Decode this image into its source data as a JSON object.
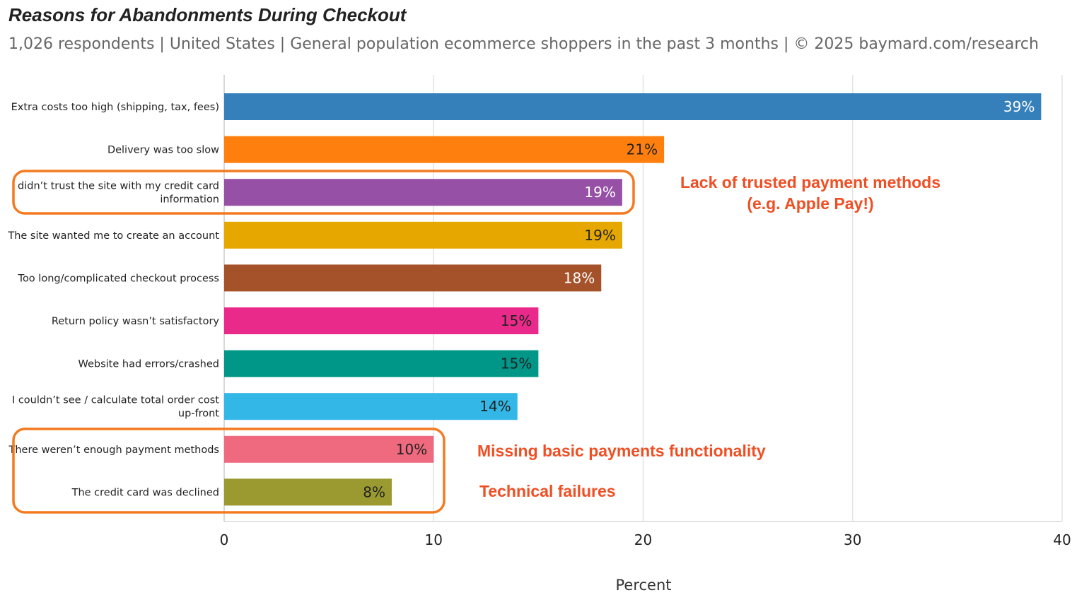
{
  "chart_data": {
    "type": "bar",
    "orientation": "horizontal",
    "title": "Reasons for Abandonments During Checkout",
    "subtitle": "1,026 respondents  |  United States  |  General population ecommerce shoppers in the past 3 months | © 2025 baymard.com/research",
    "xlabel": "Percent",
    "ylabel": "",
    "xlim": [
      0,
      40
    ],
    "xticks": [
      0,
      10,
      20,
      30,
      40
    ],
    "grid": true,
    "categories": [
      [
        "Extra costs too high (shipping, tax, fees)"
      ],
      [
        "Delivery was too slow"
      ],
      [
        "I didn’t trust the site with my credit card",
        "information"
      ],
      [
        "The site wanted me to create an account"
      ],
      [
        "Too long/complicated checkout process"
      ],
      [
        "Return policy wasn’t satisfactory"
      ],
      [
        "Website had errors/crashed"
      ],
      [
        "I couldn’t see / calculate total order cost",
        "up-front"
      ],
      [
        "There weren’t enough payment methods"
      ],
      [
        "The credit card was declined"
      ]
    ],
    "values": [
      39,
      21,
      19,
      19,
      18,
      15,
      15,
      14,
      10,
      8
    ],
    "value_labels": [
      "39%",
      "21%",
      "19%",
      "19%",
      "18%",
      "15%",
      "15%",
      "14%",
      "10%",
      "8%"
    ],
    "colors": [
      "#3580bb",
      "#ff7f0e",
      "#9650a6",
      "#e6a800",
      "#a5522a",
      "#e92a8a",
      "#009688",
      "#33b7e6",
      "#ef6a7e",
      "#9a9a31"
    ],
    "label_colors": [
      "#ffffff",
      "#222222",
      "#ffffff",
      "#222222",
      "#ffffff",
      "#222222",
      "#222222",
      "#222222",
      "#222222",
      "#222222"
    ],
    "annotations": [
      {
        "lines": [
          "Lack of trusted payment methods",
          "(e.g. Apple Pay!)"
        ],
        "color": "#f04e23"
      },
      {
        "lines": [
          "Missing basic payments functionality"
        ],
        "color": "#f04e23"
      },
      {
        "lines": [
          "Technical failures"
        ],
        "color": "#f04e23"
      }
    ],
    "highlight_color": "#f47a20"
  }
}
